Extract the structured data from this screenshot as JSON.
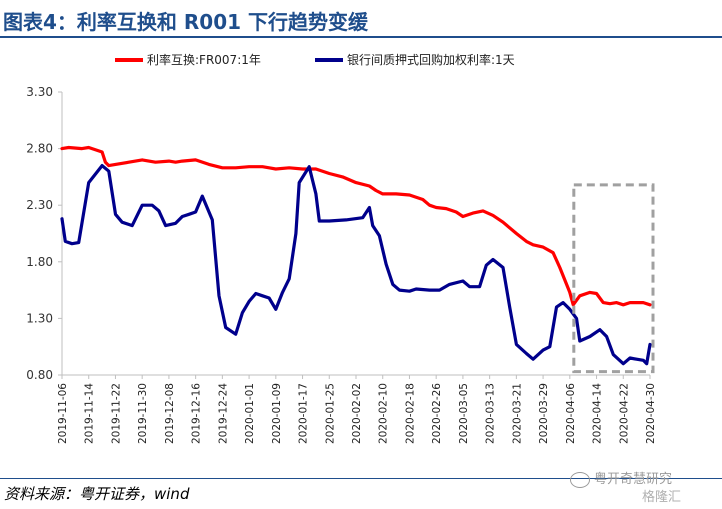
{
  "title": "图表4：利率互换和 R001 下行趋势变缓",
  "source": "资料来源：粤开证券，wind",
  "watermark": {
    "line1": "粤开奇慧研究",
    "line2": "格隆汇"
  },
  "colors": {
    "series1": "#ff0000",
    "series2": "#00008c",
    "box": "#a0a0a0",
    "title": "#1f4e8c",
    "axis": "#bfbfbf"
  },
  "chart_data": {
    "type": "line",
    "title": "",
    "xlabel": "",
    "ylabel": "",
    "ylim": [
      0.8,
      3.3
    ],
    "yticks": [
      "0.80",
      "1.30",
      "1.80",
      "2.30",
      "2.80",
      "3.30"
    ],
    "grid": false,
    "legend_position": "top",
    "x_tick_labels": [
      "2019-11-06",
      "2019-11-14",
      "2019-11-22",
      "2019-11-30",
      "2019-12-08",
      "2019-12-16",
      "2019-12-24",
      "2020-01-01",
      "2020-01-09",
      "2020-01-17",
      "2020-01-25",
      "2020-02-02",
      "2020-02-10",
      "2020-02-18",
      "2020-02-26",
      "2020-03-05",
      "2020-03-13",
      "2020-03-21",
      "2020-03-29",
      "2020-04-06",
      "2020-04-14",
      "2020-04-22",
      "2020-04-30"
    ],
    "x_start": "2019-11-06",
    "x_end": "2020-04-30",
    "series": [
      {
        "name": "利率互换:FR007:1年",
        "points": [
          [
            "2019-11-06",
            2.8
          ],
          [
            "2019-11-08",
            2.81
          ],
          [
            "2019-11-12",
            2.8
          ],
          [
            "2019-11-14",
            2.81
          ],
          [
            "2019-11-18",
            2.77
          ],
          [
            "2019-11-19",
            2.68
          ],
          [
            "2019-11-20",
            2.65
          ],
          [
            "2019-11-22",
            2.66
          ],
          [
            "2019-11-26",
            2.68
          ],
          [
            "2019-11-28",
            2.69
          ],
          [
            "2019-11-30",
            2.7
          ],
          [
            "2019-12-04",
            2.68
          ],
          [
            "2019-12-08",
            2.69
          ],
          [
            "2019-12-10",
            2.68
          ],
          [
            "2019-12-12",
            2.69
          ],
          [
            "2019-12-16",
            2.7
          ],
          [
            "2019-12-20",
            2.66
          ],
          [
            "2019-12-24",
            2.63
          ],
          [
            "2019-12-28",
            2.63
          ],
          [
            "2020-01-01",
            2.64
          ],
          [
            "2020-01-05",
            2.64
          ],
          [
            "2020-01-07",
            2.63
          ],
          [
            "2020-01-09",
            2.62
          ],
          [
            "2020-01-13",
            2.63
          ],
          [
            "2020-01-17",
            2.62
          ],
          [
            "2020-01-21",
            2.62
          ],
          [
            "2020-01-25",
            2.58
          ],
          [
            "2020-01-29",
            2.55
          ],
          [
            "2020-02-02",
            2.5
          ],
          [
            "2020-02-06",
            2.47
          ],
          [
            "2020-02-08",
            2.43
          ],
          [
            "2020-02-10",
            2.4
          ],
          [
            "2020-02-14",
            2.4
          ],
          [
            "2020-02-18",
            2.39
          ],
          [
            "2020-02-22",
            2.35
          ],
          [
            "2020-02-24",
            2.3
          ],
          [
            "2020-02-26",
            2.28
          ],
          [
            "2020-02-29",
            2.27
          ],
          [
            "2020-03-03",
            2.24
          ],
          [
            "2020-03-05",
            2.2
          ],
          [
            "2020-03-08",
            2.23
          ],
          [
            "2020-03-11",
            2.25
          ],
          [
            "2020-03-14",
            2.21
          ],
          [
            "2020-03-17",
            2.15
          ],
          [
            "2020-03-21",
            2.05
          ],
          [
            "2020-03-24",
            1.98
          ],
          [
            "2020-03-26",
            1.95
          ],
          [
            "2020-03-29",
            1.93
          ],
          [
            "2020-04-01",
            1.88
          ],
          [
            "2020-04-03",
            1.75
          ],
          [
            "2020-04-06",
            1.53
          ],
          [
            "2020-04-07",
            1.42
          ],
          [
            "2020-04-09",
            1.5
          ],
          [
            "2020-04-12",
            1.53
          ],
          [
            "2020-04-14",
            1.52
          ],
          [
            "2020-04-16",
            1.44
          ],
          [
            "2020-04-18",
            1.43
          ],
          [
            "2020-04-20",
            1.44
          ],
          [
            "2020-04-22",
            1.42
          ],
          [
            "2020-04-24",
            1.44
          ],
          [
            "2020-04-28",
            1.44
          ],
          [
            "2020-04-30",
            1.42
          ]
        ]
      },
      {
        "name": "银行间质押式回购加权利率:1天",
        "points": [
          [
            "2019-11-06",
            2.18
          ],
          [
            "2019-11-07",
            1.98
          ],
          [
            "2019-11-09",
            1.96
          ],
          [
            "2019-11-11",
            1.97
          ],
          [
            "2019-11-14",
            2.5
          ],
          [
            "2019-11-18",
            2.65
          ],
          [
            "2019-11-20",
            2.6
          ],
          [
            "2019-11-22",
            2.22
          ],
          [
            "2019-11-24",
            2.15
          ],
          [
            "2019-11-27",
            2.12
          ],
          [
            "2019-11-30",
            2.3
          ],
          [
            "2019-12-03",
            2.3
          ],
          [
            "2019-12-05",
            2.25
          ],
          [
            "2019-12-07",
            2.12
          ],
          [
            "2019-12-10",
            2.14
          ],
          [
            "2019-12-12",
            2.2
          ],
          [
            "2019-12-14",
            2.22
          ],
          [
            "2019-12-16",
            2.24
          ],
          [
            "2019-12-18",
            2.38
          ],
          [
            "2019-12-21",
            2.17
          ],
          [
            "2019-12-23",
            1.5
          ],
          [
            "2019-12-25",
            1.22
          ],
          [
            "2019-12-28",
            1.16
          ],
          [
            "2019-12-30",
            1.35
          ],
          [
            "2020-01-01",
            1.45
          ],
          [
            "2020-01-03",
            1.52
          ],
          [
            "2020-01-05",
            1.5
          ],
          [
            "2020-01-07",
            1.48
          ],
          [
            "2020-01-09",
            1.38
          ],
          [
            "2020-01-11",
            1.53
          ],
          [
            "2020-01-13",
            1.65
          ],
          [
            "2020-01-15",
            2.05
          ],
          [
            "2020-01-16",
            2.5
          ],
          [
            "2020-01-19",
            2.64
          ],
          [
            "2020-01-21",
            2.4
          ],
          [
            "2020-01-22",
            2.16
          ],
          [
            "2020-01-25",
            2.16
          ],
          [
            "2020-01-30",
            2.17
          ],
          [
            "2020-02-04",
            2.19
          ],
          [
            "2020-02-06",
            2.28
          ],
          [
            "2020-02-07",
            2.12
          ],
          [
            "2020-02-09",
            2.03
          ],
          [
            "2020-02-11",
            1.78
          ],
          [
            "2020-02-13",
            1.6
          ],
          [
            "2020-02-15",
            1.55
          ],
          [
            "2020-02-18",
            1.54
          ],
          [
            "2020-02-20",
            1.56
          ],
          [
            "2020-02-24",
            1.55
          ],
          [
            "2020-02-27",
            1.55
          ],
          [
            "2020-03-01",
            1.6
          ],
          [
            "2020-03-05",
            1.63
          ],
          [
            "2020-03-07",
            1.58
          ],
          [
            "2020-03-10",
            1.58
          ],
          [
            "2020-03-12",
            1.77
          ],
          [
            "2020-03-14",
            1.82
          ],
          [
            "2020-03-17",
            1.75
          ],
          [
            "2020-03-19",
            1.4
          ],
          [
            "2020-03-21",
            1.07
          ],
          [
            "2020-03-24",
            0.99
          ],
          [
            "2020-03-26",
            0.94
          ],
          [
            "2020-03-29",
            1.02
          ],
          [
            "2020-03-31",
            1.05
          ],
          [
            "2020-04-02",
            1.4
          ],
          [
            "2020-04-04",
            1.44
          ],
          [
            "2020-04-06",
            1.38
          ],
          [
            "2020-04-08",
            1.3
          ],
          [
            "2020-04-09",
            1.1
          ],
          [
            "2020-04-12",
            1.14
          ],
          [
            "2020-04-15",
            1.2
          ],
          [
            "2020-04-17",
            1.14
          ],
          [
            "2020-04-19",
            0.98
          ],
          [
            "2020-04-22",
            0.9
          ],
          [
            "2020-04-24",
            0.95
          ],
          [
            "2020-04-26",
            0.94
          ],
          [
            "2020-04-28",
            0.93
          ],
          [
            "2020-04-29",
            0.9
          ],
          [
            "2020-04-30",
            1.07
          ]
        ]
      }
    ],
    "highlight_box": {
      "x_from": "2020-04-06",
      "x_to": "2020-04-30",
      "y_from": 0.83,
      "y_to": 2.48
    }
  }
}
